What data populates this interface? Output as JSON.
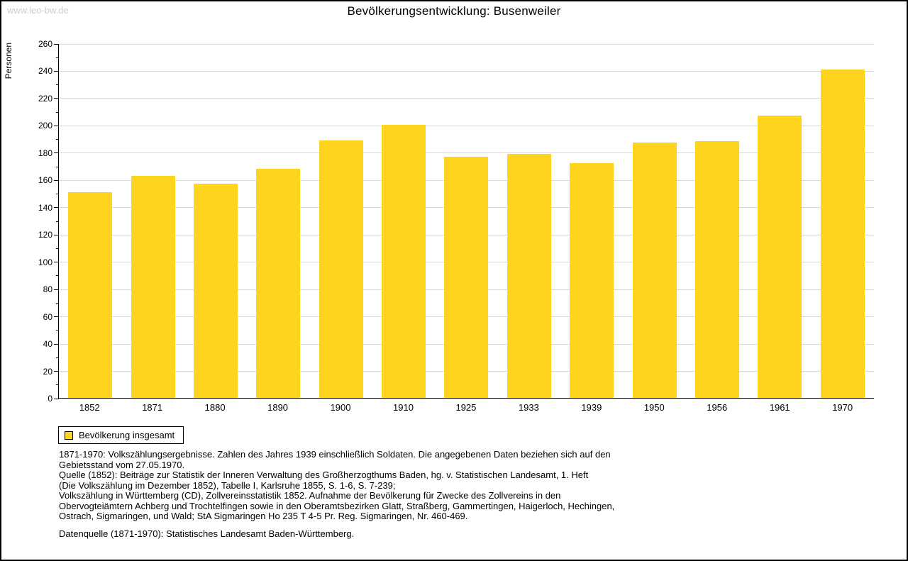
{
  "watermark": "www.leo-bw.de",
  "title": "Bevölkerungsentwicklung: Busenweiler",
  "chart_data": {
    "type": "bar",
    "title": "Bevölkerungsentwicklung: Busenweiler",
    "xlabel": "",
    "ylabel": "Personen",
    "categories": [
      "1852",
      "1871",
      "1880",
      "1890",
      "1900",
      "1910",
      "1925",
      "1933",
      "1939",
      "1950",
      "1956",
      "1961",
      "1970"
    ],
    "values": [
      151,
      163,
      157,
      168,
      189,
      200,
      177,
      179,
      172,
      187,
      188,
      207,
      241
    ],
    "ylim": [
      0,
      260
    ],
    "ytick_step": 20,
    "minor_tick_step": 10,
    "grid": true,
    "bar_color": "#FFD41E",
    "legend_position": "bottom-left"
  },
  "legend": {
    "label": "Bevölkerung insgesamt"
  },
  "footer": {
    "lines": [
      "1871-1970: Volkszählungsergebnisse. Zahlen des Jahres 1939 einschließlich Soldaten. Die angegebenen Daten beziehen sich auf den",
      "Gebietsstand vom 27.05.1970.",
      "Quelle (1852): Beiträge zur Statistik der Inneren Verwaltung des Großherzogthums Baden, hg. v. Statistischen Landesamt, 1. Heft",
      "(Die Volkszählung im Dezember 1852), Tabelle I, Karlsruhe 1855, S. 1-6, S. 7-239;",
      "Volkszählung in Württemberg (CD), Zollvereinsstatistik 1852. Aufnahme der Bevölkerung für Zwecke des Zollvereins in den",
      "Obervogteiämtern Achberg und Trochtelfingen sowie in den Oberamtsbezirken Glatt, Straßberg, Gammertingen, Haigerloch, Hechingen,",
      "Ostrach, Sigmaringen, und Wald; StA Sigmaringen Ho 235 T 4-5 Pr. Reg. Sigmaringen, Nr. 460-469."
    ],
    "datasource": "Datenquelle (1871-1970): Statistisches Landesamt Baden-Württemberg."
  }
}
